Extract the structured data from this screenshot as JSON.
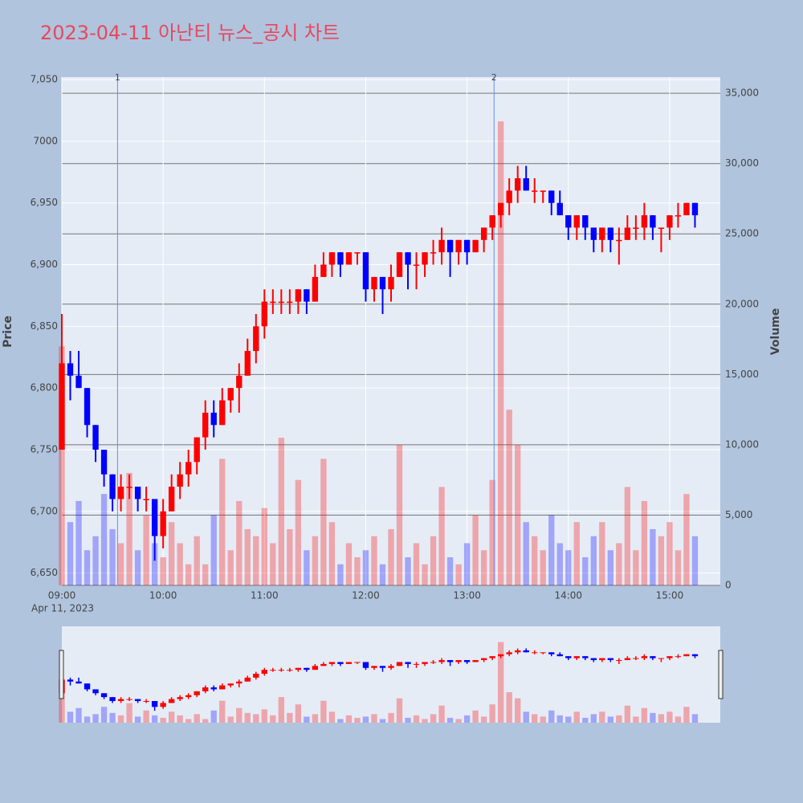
{
  "chart_data": {
    "type": "candlestick",
    "title": "2023-04-11 아난티 뉴스_공시 차트",
    "y_label": "Price",
    "y2_label": "Volume",
    "x_date_label": "Apr 11, 2023",
    "increasing_color": "#ff0000",
    "decreasing_color": "#0000ff",
    "grid": true,
    "x": [
      "2023-04-11 09:00",
      "2023-04-11 09:05",
      "2023-04-11 09:10",
      "2023-04-11 09:15",
      "2023-04-11 09:20",
      "2023-04-11 09:25",
      "2023-04-11 09:30",
      "2023-04-11 09:35",
      "2023-04-11 09:40",
      "2023-04-11 09:45",
      "2023-04-11 09:50",
      "2023-04-11 09:55",
      "2023-04-11 10:00",
      "2023-04-11 10:05",
      "2023-04-11 10:10",
      "2023-04-11 10:15",
      "2023-04-11 10:20",
      "2023-04-11 10:25",
      "2023-04-11 10:30",
      "2023-04-11 10:35",
      "2023-04-11 10:40",
      "2023-04-11 10:45",
      "2023-04-11 10:50",
      "2023-04-11 10:55",
      "2023-04-11 11:00",
      "2023-04-11 11:05",
      "2023-04-11 11:10",
      "2023-04-11 11:15",
      "2023-04-11 11:20",
      "2023-04-11 11:25",
      "2023-04-11 11:30",
      "2023-04-11 11:35",
      "2023-04-11 11:40",
      "2023-04-11 11:45",
      "2023-04-11 11:50",
      "2023-04-11 11:55",
      "2023-04-11 12:00",
      "2023-04-11 12:05",
      "2023-04-11 12:10",
      "2023-04-11 12:15",
      "2023-04-11 12:20",
      "2023-04-11 12:25",
      "2023-04-11 12:30",
      "2023-04-11 12:35",
      "2023-04-11 12:40",
      "2023-04-11 12:45",
      "2023-04-11 12:50",
      "2023-04-11 12:55",
      "2023-04-11 13:00",
      "2023-04-11 13:05",
      "2023-04-11 13:10",
      "2023-04-11 13:15",
      "2023-04-11 13:20",
      "2023-04-11 13:25",
      "2023-04-11 13:30",
      "2023-04-11 13:35",
      "2023-04-11 13:40",
      "2023-04-11 13:45",
      "2023-04-11 13:50",
      "2023-04-11 13:55",
      "2023-04-11 14:00",
      "2023-04-11 14:05",
      "2023-04-11 14:10",
      "2023-04-11 14:15",
      "2023-04-11 14:20",
      "2023-04-11 14:25",
      "2023-04-11 14:30",
      "2023-04-11 14:35",
      "2023-04-11 14:40",
      "2023-04-11 14:45",
      "2023-04-11 14:50",
      "2023-04-11 14:55",
      "2023-04-11 15:00",
      "2023-04-11 15:05",
      "2023-04-11 15:10",
      "2023-04-11 15:15"
    ],
    "open": [
      6750,
      6820,
      6810,
      6800,
      6770,
      6750,
      6730,
      6710,
      6720,
      6720,
      6710,
      6710,
      6680,
      6700,
      6720,
      6730,
      6740,
      6760,
      6780,
      6770,
      6790,
      6800,
      6810,
      6830,
      6850,
      6870,
      6870,
      6870,
      6870,
      6880,
      6870,
      6890,
      6900,
      6910,
      6900,
      6910,
      6910,
      6880,
      6890,
      6880,
      6890,
      6910,
      6900,
      6900,
      6910,
      6910,
      6920,
      6910,
      6920,
      6910,
      6920,
      6930,
      6940,
      6950,
      6960,
      6970,
      6960,
      6960,
      6960,
      6950,
      6940,
      6930,
      6940,
      6930,
      6920,
      6930,
      6920,
      6920,
      6930,
      6930,
      6940,
      6930,
      6930,
      6940,
      6940,
      6950
    ],
    "high": [
      6860,
      6830,
      6830,
      6800,
      6770,
      6750,
      6730,
      6730,
      6730,
      6720,
      6720,
      6710,
      6710,
      6730,
      6740,
      6750,
      6760,
      6790,
      6790,
      6800,
      6800,
      6820,
      6840,
      6860,
      6880,
      6880,
      6880,
      6880,
      6880,
      6880,
      6900,
      6910,
      6910,
      6910,
      6910,
      6910,
      6910,
      6890,
      6890,
      6900,
      6910,
      6910,
      6910,
      6910,
      6920,
      6930,
      6920,
      6920,
      6920,
      6920,
      6930,
      6940,
      6950,
      6970,
      6980,
      6980,
      6970,
      6960,
      6960,
      6960,
      6940,
      6940,
      6940,
      6930,
      6930,
      6930,
      6930,
      6940,
      6940,
      6950,
      6940,
      6930,
      6940,
      6950,
      6950,
      6950
    ],
    "low": [
      6750,
      6790,
      6800,
      6760,
      6740,
      6720,
      6700,
      6700,
      6710,
      6700,
      6700,
      6660,
      6670,
      6700,
      6710,
      6720,
      6730,
      6750,
      6760,
      6770,
      6780,
      6780,
      6810,
      6820,
      6840,
      6860,
      6860,
      6860,
      6860,
      6860,
      6870,
      6890,
      6890,
      6890,
      6900,
      6900,
      6870,
      6870,
      6860,
      6870,
      6890,
      6880,
      6880,
      6890,
      6900,
      6900,
      6890,
      6900,
      6900,
      6910,
      6910,
      6920,
      6930,
      6940,
      6950,
      6960,
      6950,
      6950,
      6940,
      6940,
      6920,
      6920,
      6920,
      6910,
      6910,
      6910,
      6900,
      6920,
      6920,
      6920,
      6920,
      6910,
      6920,
      6930,
      6940,
      6930
    ],
    "close": [
      6820,
      6810,
      6800,
      6770,
      6750,
      6730,
      6710,
      6720,
      6720,
      6710,
      6710,
      6680,
      6700,
      6720,
      6730,
      6740,
      6760,
      6780,
      6770,
      6790,
      6800,
      6810,
      6830,
      6850,
      6870,
      6870,
      6870,
      6870,
      6880,
      6870,
      6890,
      6900,
      6910,
      6900,
      6910,
      6910,
      6880,
      6890,
      6880,
      6890,
      6910,
      6900,
      6900,
      6910,
      6910,
      6920,
      6910,
      6920,
      6910,
      6920,
      6930,
      6940,
      6950,
      6960,
      6970,
      6960,
      6960,
      6960,
      6950,
      6940,
      6930,
      6940,
      6930,
      6920,
      6930,
      6920,
      6920,
      6930,
      6930,
      6940,
      6930,
      6930,
      6940,
      6940,
      6950,
      6940
    ],
    "volume": [
      17000,
      4500,
      6000,
      2500,
      3500,
      6500,
      4000,
      3000,
      8000,
      2500,
      5000,
      3000,
      2000,
      4500,
      3000,
      1500,
      3500,
      1500,
      5000,
      9000,
      2500,
      6000,
      4000,
      3500,
      5500,
      3000,
      10500,
      4000,
      7500,
      2500,
      3500,
      9000,
      4500,
      1500,
      3000,
      2000,
      2500,
      3500,
      1500,
      4000,
      10000,
      2000,
      3000,
      1500,
      3500,
      7000,
      2000,
      1500,
      3000,
      5000,
      2500,
      7500,
      33000,
      12500,
      10000,
      4500,
      3500,
      2500,
      5000,
      3000,
      2500,
      4500,
      2000,
      3500,
      4500,
      2500,
      3000,
      7000,
      2500,
      6000,
      4000,
      3500,
      4500,
      2500,
      6500,
      3500
    ],
    "xlim": [
      "2023-04-11 09:00",
      "2023-04-11 15:30"
    ],
    "xticks": [
      {
        "value": "2023-04-11 09:00",
        "label": "09:00"
      },
      {
        "value": "2023-04-11 10:00",
        "label": "10:00"
      },
      {
        "value": "2023-04-11 11:00",
        "label": "11:00"
      },
      {
        "value": "2023-04-11 12:00",
        "label": "12:00"
      },
      {
        "value": "2023-04-11 13:00",
        "label": "13:00"
      },
      {
        "value": "2023-04-11 14:00",
        "label": "14:00"
      },
      {
        "value": "2023-04-11 15:00",
        "label": "15:00"
      }
    ],
    "ylim": [
      6640,
      7052
    ],
    "yticks": [
      {
        "value": 6650,
        "label": "6,650"
      },
      {
        "value": 6700,
        "label": "6,700"
      },
      {
        "value": 6750,
        "label": "6,750"
      },
      {
        "value": 6800,
        "label": "6,800"
      },
      {
        "value": 6850,
        "label": "6,850"
      },
      {
        "value": 6900,
        "label": "6,900"
      },
      {
        "value": 6950,
        "label": "6,950"
      },
      7000,
      {
        "value": 7050,
        "label": "7,050"
      }
    ],
    "y2lim": [
      0,
      36150
    ],
    "y2ticks": [
      0,
      {
        "value": 5000,
        "label": "5,000"
      },
      {
        "value": 10000,
        "label": "10,000"
      },
      {
        "value": 15000,
        "label": "15,000"
      },
      {
        "value": 20000,
        "label": "20,000"
      },
      {
        "value": 25000,
        "label": "25,000"
      },
      {
        "value": 30000,
        "label": "30,000"
      },
      {
        "value": 35000,
        "label": "35,000"
      }
    ],
    "annotations": [
      {
        "x": "2023-04-11 09:33",
        "text": "1"
      },
      {
        "x": "2023-04-11 13:16",
        "text": "2"
      }
    ]
  }
}
